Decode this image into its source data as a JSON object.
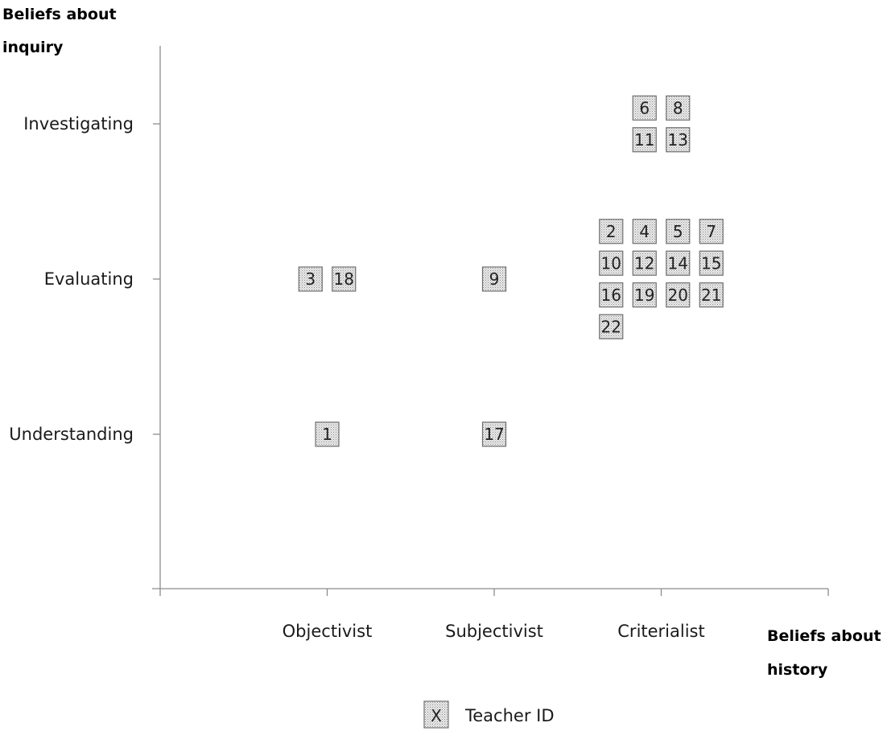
{
  "chart_data": {
    "type": "scatter",
    "x_axis": {
      "title_lines": [
        "Beliefs about",
        "history"
      ],
      "categories": [
        "Objectivist",
        "Subjectivist",
        "Criterialist"
      ]
    },
    "y_axis": {
      "title_lines": [
        "Beliefs about",
        "inquiry"
      ],
      "categories": [
        "Understanding",
        "Evaluating",
        "Investigating"
      ]
    },
    "points": [
      {
        "id": "1",
        "x": "Objectivist",
        "y": "Understanding"
      },
      {
        "id": "3",
        "x": "Objectivist",
        "y": "Evaluating"
      },
      {
        "id": "18",
        "x": "Objectivist",
        "y": "Evaluating"
      },
      {
        "id": "9",
        "x": "Subjectivist",
        "y": "Evaluating"
      },
      {
        "id": "17",
        "x": "Subjectivist",
        "y": "Understanding"
      },
      {
        "id": "6",
        "x": "Criterialist",
        "y": "Investigating"
      },
      {
        "id": "8",
        "x": "Criterialist",
        "y": "Investigating"
      },
      {
        "id": "11",
        "x": "Criterialist",
        "y": "Investigating"
      },
      {
        "id": "13",
        "x": "Criterialist",
        "y": "Investigating"
      },
      {
        "id": "2",
        "x": "Criterialist",
        "y": "Evaluating"
      },
      {
        "id": "4",
        "x": "Criterialist",
        "y": "Evaluating"
      },
      {
        "id": "5",
        "x": "Criterialist",
        "y": "Evaluating"
      },
      {
        "id": "7",
        "x": "Criterialist",
        "y": "Evaluating"
      },
      {
        "id": "10",
        "x": "Criterialist",
        "y": "Evaluating"
      },
      {
        "id": "12",
        "x": "Criterialist",
        "y": "Evaluating"
      },
      {
        "id": "14",
        "x": "Criterialist",
        "y": "Evaluating"
      },
      {
        "id": "15",
        "x": "Criterialist",
        "y": "Evaluating"
      },
      {
        "id": "16",
        "x": "Criterialist",
        "y": "Evaluating"
      },
      {
        "id": "19",
        "x": "Criterialist",
        "y": "Evaluating"
      },
      {
        "id": "20",
        "x": "Criterialist",
        "y": "Evaluating"
      },
      {
        "id": "21",
        "x": "Criterialist",
        "y": "Evaluating"
      },
      {
        "id": "22",
        "x": "Criterialist",
        "y": "Evaluating"
      }
    ],
    "legend": {
      "symbol": "X",
      "label": "Teacher ID",
      "placement": "bottom-center"
    },
    "grid": false,
    "marker_style": "dotted-gray-box",
    "colors": {
      "axis": "#8c8c8c",
      "marker_fill": "#d9d9d9",
      "marker_border": "#707070",
      "text": "#1a1a1a"
    }
  }
}
